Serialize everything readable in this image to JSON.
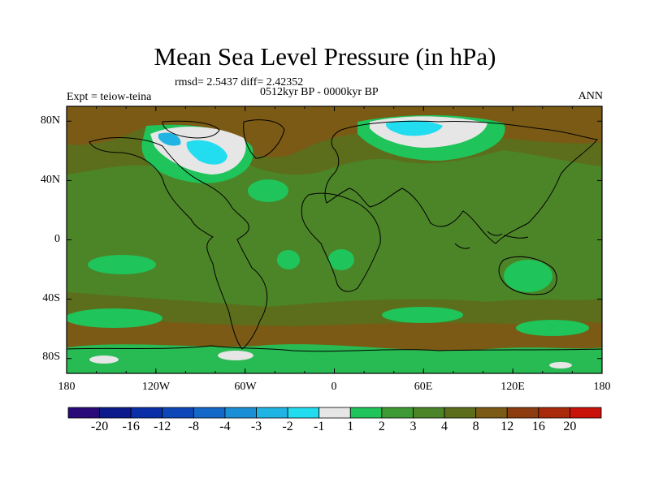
{
  "title": "Mean Sea Level Pressure (in hPa)",
  "stats": "rmsd= 2.5437 diff= 2.42352",
  "period": "0512kyr BP - 0000kyr BP",
  "experiment": "Expt = teiow-teina",
  "season": "ANN",
  "lat_ticks": [
    "80N",
    "40N",
    "0",
    "40S",
    "80S"
  ],
  "lon_ticks": [
    "180",
    "120W",
    "60W",
    "0",
    "60E",
    "120E",
    "180"
  ],
  "colorbar": {
    "labels": [
      "-20",
      "-16",
      "-12",
      "-8",
      "-4",
      "-3",
      "-2",
      "-1",
      "1",
      "2",
      "3",
      "4",
      "8",
      "12",
      "16",
      "20"
    ],
    "colors": [
      "#2a0a78",
      "#0d1a8c",
      "#0b2fa6",
      "#0d47b8",
      "#1468c8",
      "#1a8fd6",
      "#1fb4e4",
      "#22dcef",
      "#e6e6e6",
      "#1fc45a",
      "#3e9a34",
      "#4c8428",
      "#5c6e1c",
      "#7a5a14",
      "#8c3c0e",
      "#a82a0a",
      "#c8120a"
    ]
  },
  "field_colors": {
    "ocean_base": "#4c8428",
    "high_lat": "#7a5a14",
    "positive_small": "#1fc45a",
    "neutral": "#e6e6e6",
    "negative_small": "#22dcef",
    "negative_mid": "#1fb4e4"
  }
}
